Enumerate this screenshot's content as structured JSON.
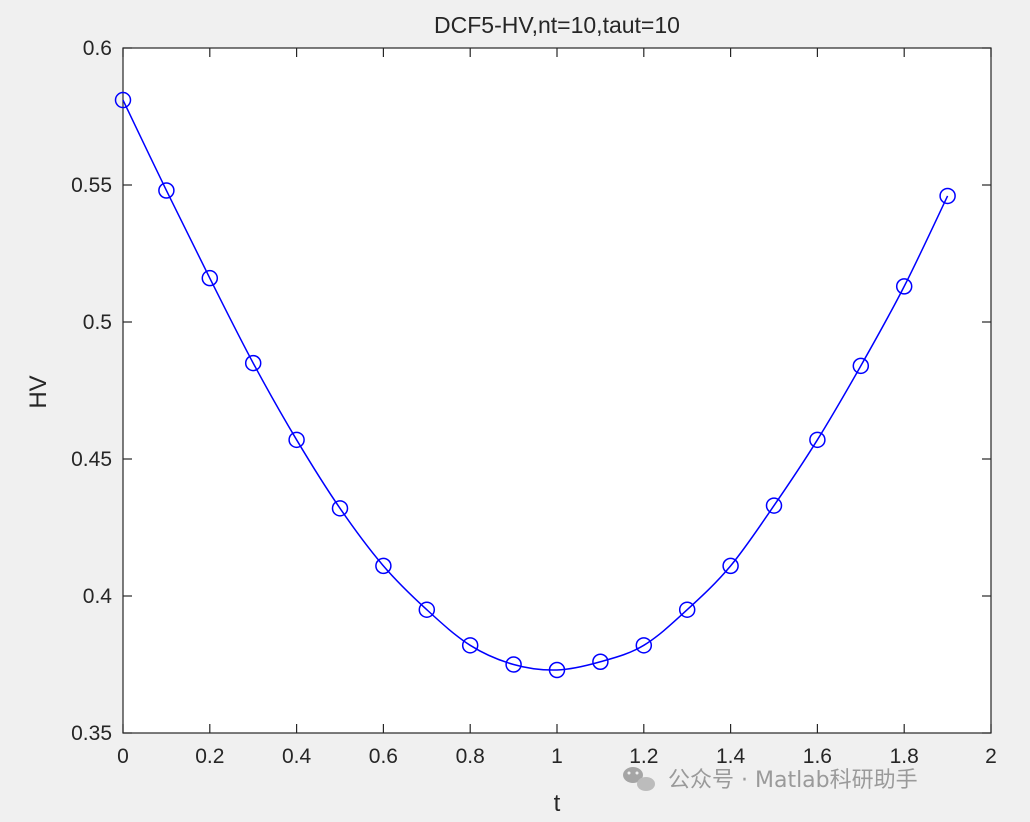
{
  "chart_data": {
    "type": "line",
    "title": "DCF5-HV,nt=10,taut=10",
    "xlabel": "t",
    "ylabel": "HV",
    "xlim": [
      0,
      2
    ],
    "ylim": [
      0.35,
      0.6
    ],
    "xticks": [
      "0",
      "0.2",
      "0.4",
      "0.6",
      "0.8",
      "1",
      "1.2",
      "1.4",
      "1.6",
      "1.8",
      "2"
    ],
    "yticks": [
      "0.35",
      "0.4",
      "0.45",
      "0.5",
      "0.55",
      "0.6"
    ],
    "grid": false,
    "marker": "circle",
    "line_color": "#0000ff",
    "series": [
      {
        "x": [
          0,
          0.1,
          0.2,
          0.3,
          0.4,
          0.5,
          0.6,
          0.7,
          0.8,
          0.9,
          1.0,
          1.1,
          1.2,
          1.3,
          1.4,
          1.5,
          1.6,
          1.7,
          1.8,
          1.9
        ],
        "values": [
          0.581,
          0.548,
          0.516,
          0.485,
          0.457,
          0.432,
          0.411,
          0.395,
          0.382,
          0.375,
          0.373,
          0.376,
          0.382,
          0.395,
          0.411,
          0.433,
          0.457,
          0.484,
          0.513,
          0.546
        ]
      }
    ]
  },
  "watermark": {
    "icon": "wechat-icon",
    "text": "公众号 · Matlab科研助手"
  }
}
